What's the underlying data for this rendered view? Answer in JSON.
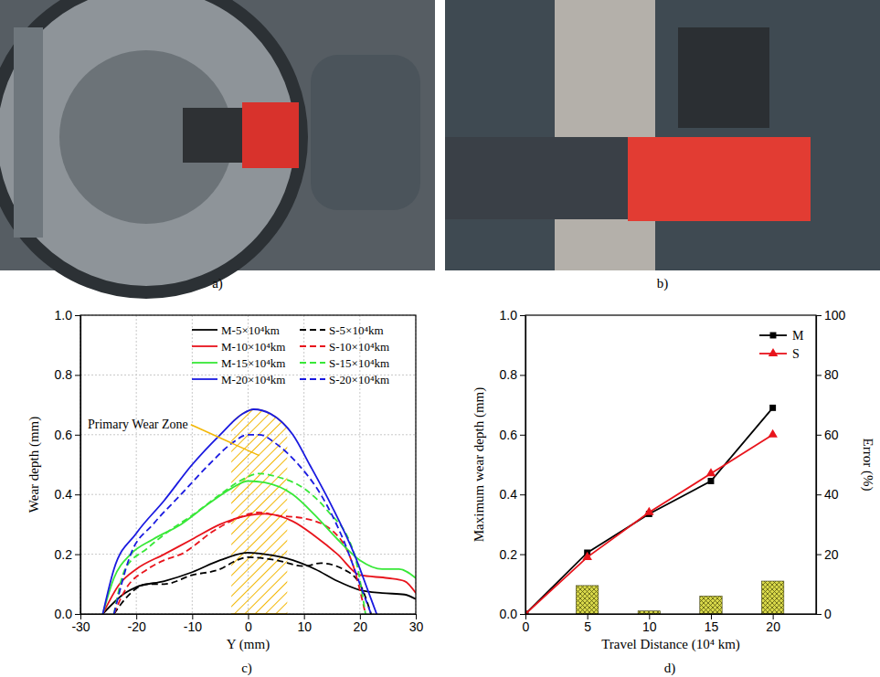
{
  "panels": [
    "a)",
    "b)",
    "c)",
    "d)"
  ],
  "chart_data": [
    {
      "type": "line",
      "x_label": "Y (mm)",
      "y_label": "Wear depth (mm)",
      "xlim": [
        -30,
        30
      ],
      "xticks": [
        -30,
        -20,
        -10,
        0,
        10,
        20,
        30
      ],
      "ylim": [
        0,
        1
      ],
      "yticks": [
        {
          "value": 0,
          "label": "0.0"
        },
        0.2,
        0.4,
        0.6,
        0.8,
        {
          "value": 1,
          "label": "1.0"
        }
      ],
      "grid": true,
      "legend": "upper right",
      "annotations": [
        {
          "text": "Primary Wear Zone",
          "xrange": [
            -3,
            7
          ]
        }
      ],
      "series": [
        {
          "name": "M-5×10⁴km",
          "color": "#000000",
          "line_style": "solid",
          "x": [
            -26,
            -22,
            -20,
            -15,
            -10,
            -5,
            0,
            3,
            8,
            12,
            16,
            20,
            24,
            28,
            30
          ],
          "values": [
            0,
            0.07,
            0.09,
            0.11,
            0.14,
            0.18,
            0.205,
            0.2,
            0.18,
            0.15,
            0.11,
            0.08,
            0.07,
            0.065,
            0.05
          ]
        },
        {
          "name": "S-5×10⁴km",
          "color": "#000000",
          "line_style": "dashed",
          "x": [
            -24,
            -22,
            -18,
            -15,
            -10,
            -5,
            -2,
            0,
            5,
            10,
            13,
            17,
            20,
            22
          ],
          "values": [
            0,
            0.05,
            0.1,
            0.1,
            0.13,
            0.15,
            0.18,
            0.19,
            0.18,
            0.16,
            0.17,
            0.15,
            0.1,
            0
          ]
        },
        {
          "name": "M-10×10⁴km",
          "color": "#e8141c",
          "line_style": "solid",
          "x": [
            -26,
            -23,
            -20,
            -15,
            -10,
            -5,
            0,
            3,
            8,
            12,
            16,
            20,
            25,
            28,
            30
          ],
          "values": [
            0,
            0.1,
            0.15,
            0.2,
            0.25,
            0.3,
            0.33,
            0.335,
            0.31,
            0.26,
            0.2,
            0.13,
            0.12,
            0.11,
            0.07
          ]
        },
        {
          "name": "S-10×10⁴km",
          "color": "#e8141c",
          "line_style": "dashed",
          "x": [
            -24,
            -22,
            -18,
            -15,
            -12,
            -6,
            -2,
            2,
            5,
            10,
            15,
            19,
            21
          ],
          "values": [
            0,
            0.08,
            0.15,
            0.18,
            0.2,
            0.28,
            0.32,
            0.34,
            0.33,
            0.32,
            0.28,
            0.15,
            0
          ]
        },
        {
          "name": "M-15×10⁴km",
          "color": "#38e838",
          "line_style": "solid",
          "x": [
            -26,
            -24,
            -21,
            -17,
            -12,
            -7,
            -3,
            0,
            3,
            8,
            12,
            16,
            20,
            24,
            27,
            30
          ],
          "values": [
            0,
            0.12,
            0.2,
            0.25,
            0.3,
            0.37,
            0.42,
            0.445,
            0.44,
            0.4,
            0.33,
            0.25,
            0.18,
            0.15,
            0.15,
            0.12
          ]
        },
        {
          "name": "S-15×10⁴km",
          "color": "#38e838",
          "line_style": "dashed",
          "x": [
            -24,
            -22,
            -18,
            -14,
            -10,
            -5,
            -1,
            2,
            5,
            10,
            14,
            19,
            21
          ],
          "values": [
            0,
            0.15,
            0.22,
            0.28,
            0.33,
            0.4,
            0.45,
            0.47,
            0.46,
            0.42,
            0.35,
            0.2,
            0
          ]
        },
        {
          "name": "M-20×10⁴km",
          "color": "#1a1ae0",
          "line_style": "solid",
          "x": [
            -26,
            -24,
            -20,
            -15,
            -10,
            -5,
            -1,
            1,
            4,
            8,
            11,
            15,
            19,
            22,
            23
          ],
          "values": [
            0,
            0.15,
            0.27,
            0.38,
            0.5,
            0.6,
            0.67,
            0.685,
            0.67,
            0.6,
            0.5,
            0.36,
            0.2,
            0.05,
            0
          ]
        },
        {
          "name": "S-20×10⁴km",
          "color": "#1a1ae0",
          "line_style": "dashed",
          "x": [
            -24,
            -21,
            -17,
            -12,
            -7,
            -3,
            0,
            2,
            5,
            9,
            13,
            17,
            20,
            22
          ],
          "values": [
            0,
            0.2,
            0.3,
            0.4,
            0.5,
            0.57,
            0.6,
            0.6,
            0.57,
            0.5,
            0.4,
            0.25,
            0.1,
            0
          ]
        }
      ]
    },
    {
      "type": "line",
      "x_label": "Travel Distance (10⁴ km)",
      "y_label": "Maximum wear depth (mm)",
      "y2_label": "Error (%)",
      "xlim": [
        0,
        23.5
      ],
      "xticks": [
        0,
        5,
        10,
        15,
        20
      ],
      "ylim": [
        0,
        1
      ],
      "yticks": [
        {
          "value": 0,
          "label": "0.0"
        },
        0.2,
        0.4,
        0.6,
        0.8,
        {
          "value": 1,
          "label": "1.0"
        }
      ],
      "y2lim": [
        0,
        100
      ],
      "y2ticks": [
        0,
        20,
        40,
        60,
        80,
        100
      ],
      "grid": false,
      "legend": "upper right",
      "x": [
        0,
        5,
        10,
        15,
        20
      ],
      "series": [
        {
          "name": "M",
          "color": "#000000",
          "marker": "square",
          "line_style": "solid",
          "values": [
            0,
            0.205,
            0.335,
            0.445,
            0.69
          ]
        },
        {
          "name": "S",
          "color": "#e8141c",
          "marker": "triangle",
          "line_style": "solid",
          "values": [
            0,
            0.19,
            0.34,
            0.47,
            0.6
          ]
        },
        {
          "type": "bar",
          "axis": "y2",
          "color": "#d8d84a",
          "x": [
            5,
            10,
            15,
            20
          ],
          "values": [
            9.5,
            1,
            6,
            11
          ]
        }
      ]
    }
  ]
}
